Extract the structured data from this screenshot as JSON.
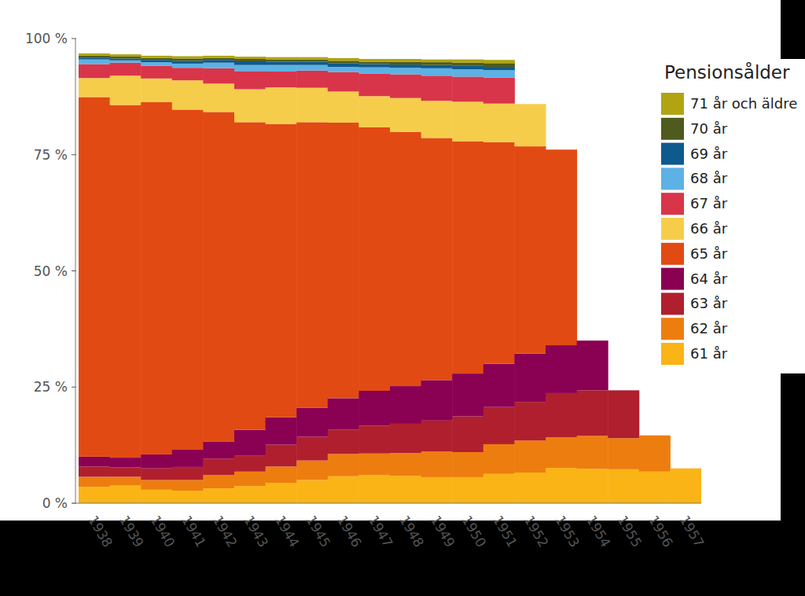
{
  "chart_data": {
    "type": "bar",
    "stacked": true,
    "legend_title": "Pensionsålder",
    "legend": "right",
    "categories": [
      "1938",
      "1939",
      "1940",
      "1941",
      "1942",
      "1943",
      "1944",
      "1945",
      "1946",
      "1947",
      "1948",
      "1949",
      "1950",
      "1951",
      "1952",
      "1953",
      "1954",
      "1955",
      "1956",
      "1957"
    ],
    "ylim": [
      0,
      100
    ],
    "yticks": [
      {
        "value": 0,
        "label": "0 %"
      },
      {
        "value": 25,
        "label": "25 %"
      },
      {
        "value": 50,
        "label": "50 %"
      },
      {
        "value": 75,
        "label": "75 %"
      },
      {
        "value": 100,
        "label": "100 %"
      }
    ],
    "grid": false,
    "series": [
      {
        "name": "61 år",
        "color": "#fbb416",
        "values": [
          3.5,
          3.8,
          2.9,
          2.7,
          3.2,
          3.7,
          4.4,
          5.0,
          5.8,
          6.1,
          5.9,
          5.6,
          5.6,
          6.3,
          6.6,
          7.6,
          7.4,
          7.3,
          6.8,
          7.5
        ]
      },
      {
        "name": "62 år",
        "color": "#ee7d0f",
        "values": [
          2.2,
          1.9,
          2.1,
          2.3,
          2.9,
          3.1,
          3.5,
          4.2,
          4.8,
          4.6,
          4.9,
          5.5,
          5.4,
          6.4,
          6.9,
          6.6,
          7.1,
          6.7,
          7.8,
          null
        ]
      },
      {
        "name": "63 år",
        "color": "#b01f2e",
        "values": [
          2.2,
          2.0,
          2.5,
          2.8,
          3.5,
          3.5,
          4.7,
          5.1,
          5.2,
          6.0,
          6.3,
          6.7,
          7.7,
          8.0,
          8.3,
          9.5,
          9.8,
          10.3,
          null,
          null
        ]
      },
      {
        "name": "64 år",
        "color": "#8a0052",
        "values": [
          2.1,
          2.1,
          3.0,
          3.7,
          3.7,
          5.5,
          5.9,
          6.2,
          6.8,
          7.5,
          8.1,
          8.7,
          9.2,
          9.3,
          10.4,
          10.3,
          10.7,
          null,
          null,
          null
        ]
      },
      {
        "name": "65 år",
        "color": "#e24a14",
        "values": [
          77.4,
          75.9,
          75.8,
          73.2,
          70.9,
          66.2,
          63.1,
          61.5,
          59.3,
          56.7,
          54.7,
          52.1,
          50.0,
          47.7,
          44.6,
          42.1,
          null,
          null,
          null,
          null
        ]
      },
      {
        "name": "66 år",
        "color": "#f6cd4b",
        "values": [
          4.1,
          6.3,
          5.1,
          6.3,
          6.1,
          7.1,
          7.9,
          7.4,
          6.7,
          6.7,
          7.3,
          8.0,
          8.5,
          8.3,
          9.1,
          null,
          null,
          null,
          null,
          null
        ]
      },
      {
        "name": "67 år",
        "color": "#d8354a",
        "values": [
          3.0,
          2.8,
          2.7,
          2.7,
          3.3,
          3.9,
          3.4,
          3.7,
          4.2,
          4.8,
          5.1,
          5.4,
          5.4,
          5.6,
          null,
          null,
          null,
          null,
          null,
          null
        ]
      },
      {
        "name": "68 år",
        "color": "#5db1e4",
        "values": [
          1.0,
          0.5,
          0.8,
          0.9,
          1.2,
          1.3,
          1.4,
          1.2,
          1.1,
          1.4,
          1.4,
          1.6,
          1.6,
          1.6,
          null,
          null,
          null,
          null,
          null,
          null
        ]
      },
      {
        "name": "69 år",
        "color": "#0e5a8c",
        "values": [
          0.4,
          0.4,
          0.5,
          0.6,
          0.6,
          0.8,
          0.7,
          0.7,
          0.8,
          0.7,
          0.7,
          0.7,
          0.8,
          0.7,
          null,
          null,
          null,
          null,
          null,
          null
        ]
      },
      {
        "name": "70 år",
        "color": "#4e5a1e",
        "values": [
          0.4,
          0.4,
          0.4,
          0.5,
          0.4,
          0.5,
          0.5,
          0.5,
          0.5,
          0.5,
          0.6,
          0.6,
          0.6,
          0.8,
          null,
          null,
          null,
          null,
          null,
          null
        ]
      },
      {
        "name": "71 år och äldre",
        "color": "#b0a412",
        "values": [
          0.5,
          0.5,
          0.5,
          0.5,
          0.5,
          0.5,
          0.5,
          0.5,
          0.6,
          0.6,
          0.6,
          0.6,
          0.7,
          0.7,
          null,
          null,
          null,
          null,
          null,
          null
        ]
      }
    ]
  }
}
